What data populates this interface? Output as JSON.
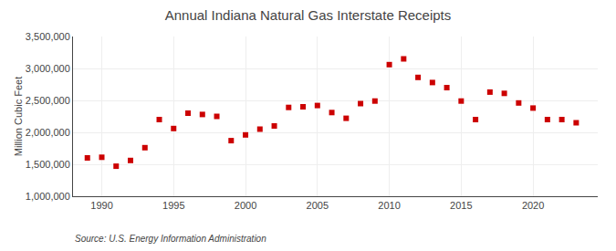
{
  "chart_data": {
    "type": "scatter",
    "title": "Annual Indiana Natural Gas Interstate Receipts",
    "ylabel": "Million Cubic Feet",
    "annotations": [
      "Source: U.S. Energy Information Administration"
    ],
    "x": [
      1989,
      1990,
      1991,
      1992,
      1993,
      1994,
      1995,
      1996,
      1997,
      1998,
      1999,
      2000,
      2001,
      2002,
      2003,
      2004,
      2005,
      2006,
      2007,
      2008,
      2009,
      2010,
      2011,
      2012,
      2013,
      2014,
      2015,
      2016,
      2017,
      2018,
      2019,
      2020,
      2021,
      2022,
      2023
    ],
    "values": [
      1600000,
      1610000,
      1470000,
      1560000,
      1760000,
      2200000,
      2060000,
      2300000,
      2280000,
      2250000,
      1870000,
      1960000,
      2050000,
      2100000,
      2390000,
      2400000,
      2420000,
      2310000,
      2220000,
      2450000,
      2490000,
      3060000,
      3150000,
      2860000,
      2780000,
      2700000,
      2490000,
      2200000,
      2630000,
      2610000,
      2460000,
      2380000,
      2200000,
      2200000,
      2150000
    ],
    "color": "#cc0000",
    "marker": "square",
    "xlim": [
      1988.0,
      2024.5
    ],
    "xticks": [
      1990,
      1995,
      2000,
      2005,
      2010,
      2015,
      2020
    ],
    "ylim": [
      1000000,
      3500000
    ],
    "yticks": [
      {
        "value": 1000000,
        "label": "1,000,000"
      },
      {
        "value": 1500000,
        "label": "1,500,000"
      },
      {
        "value": 2000000,
        "label": "2,000,000"
      },
      {
        "value": 2500000,
        "label": "2,500,000"
      },
      {
        "value": 3000000,
        "label": "3,000,000"
      },
      {
        "value": 3500000,
        "label": "3,500,000"
      }
    ],
    "grid": true
  }
}
